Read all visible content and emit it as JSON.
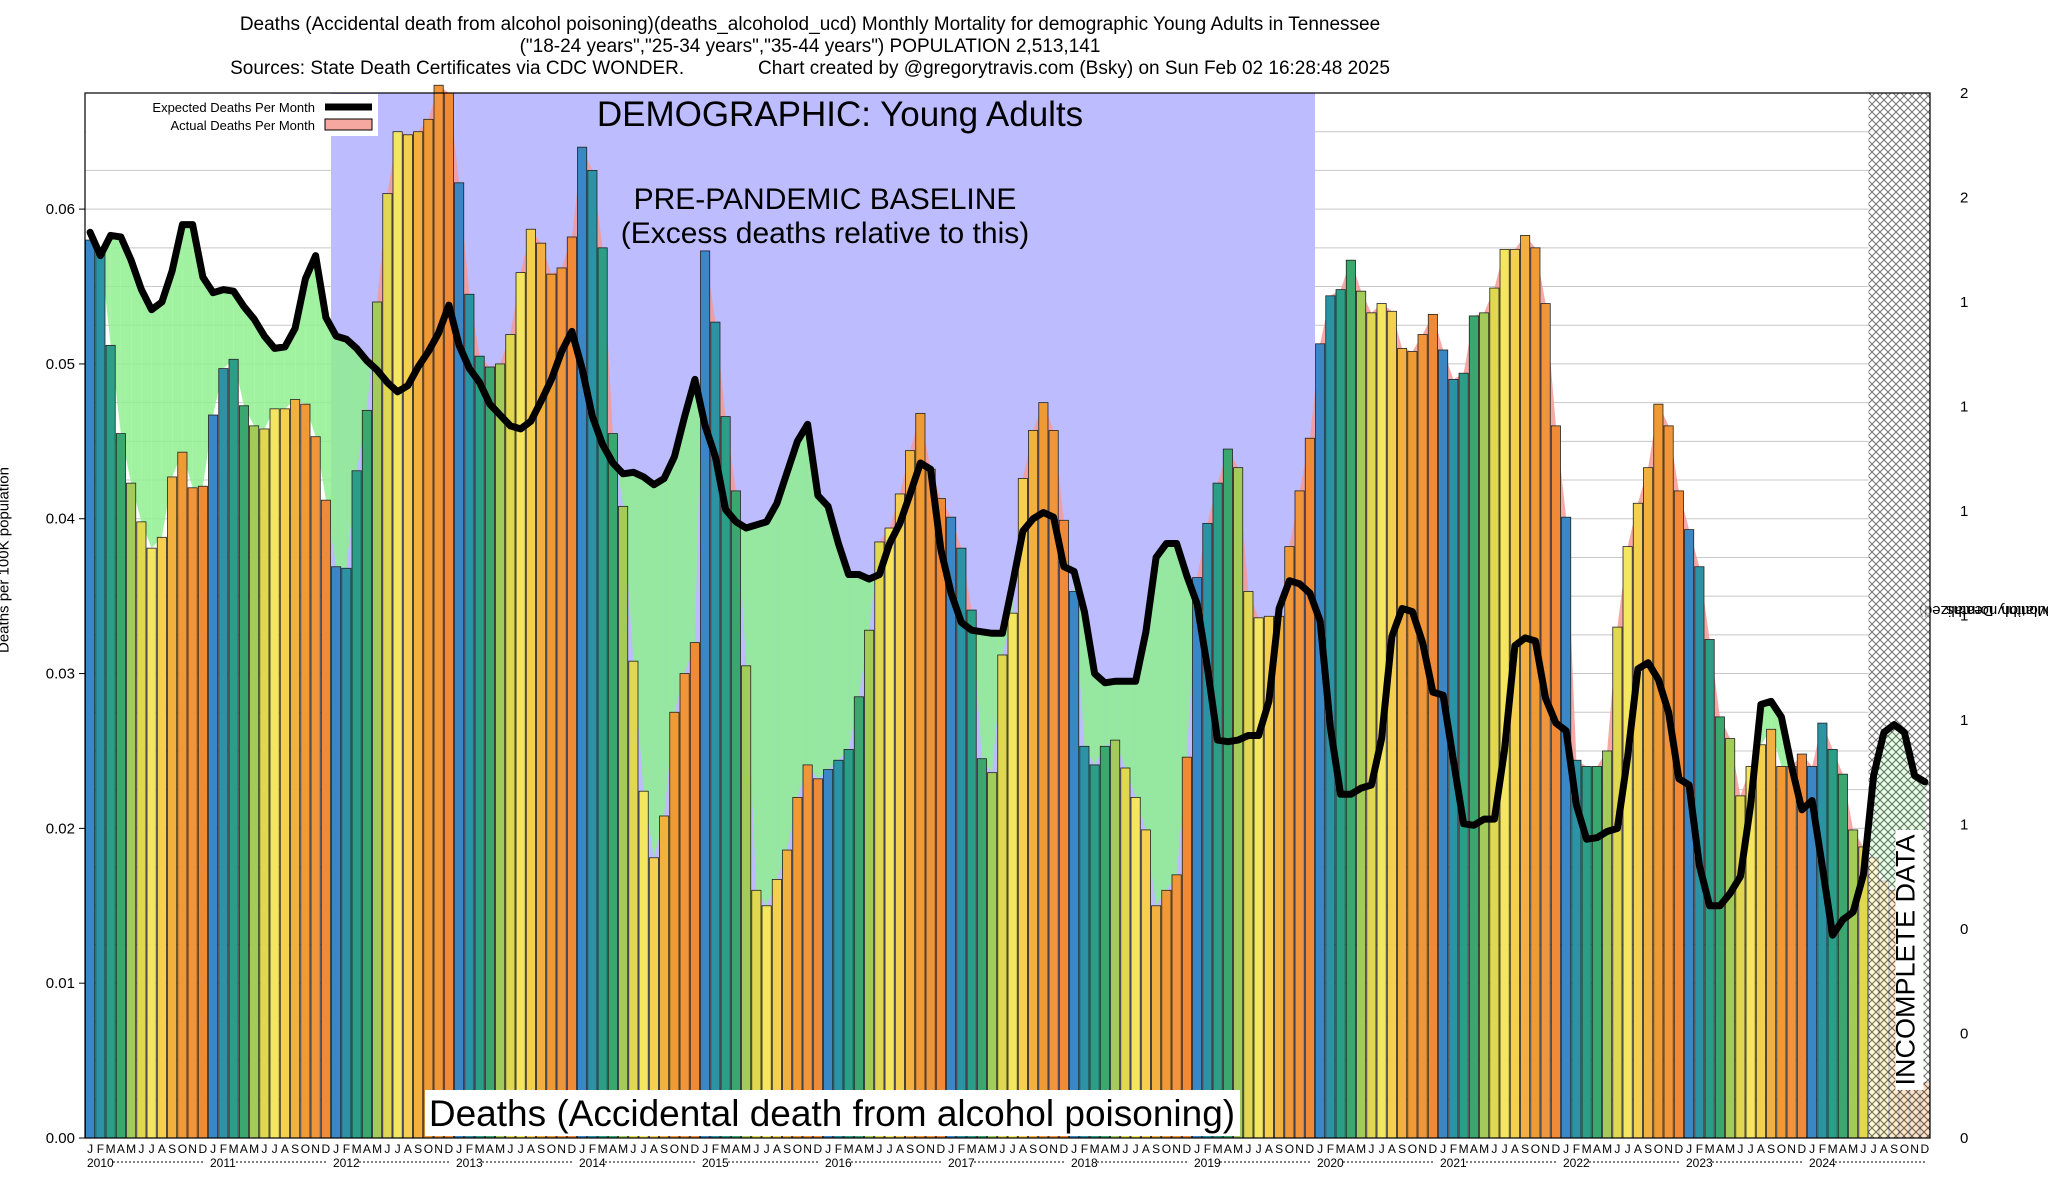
{
  "chart_data": {
    "type": "bar",
    "title": "Deaths (Accidental death from alcohol poisoning)(deaths_alcoholod_ucd) Monthly Mortality for demographic Young Adults in Tennessee",
    "subtitle": "(\"18-24 years\",\"25-34 years\",\"35-44 years\") POPULATION 2,513,141",
    "source_line": "Sources: State Death Certificates via CDC WONDER.",
    "credit_line": "Chart created by @gregorytravis.com (Bsky) on Sun Feb 02 16:28:48 2025",
    "ylabel": "Deaths per 100K population",
    "y2label_line1": "Total Monthly Deaths",
    "y2label_line2": "(2023 population normalized)",
    "ylim": [
      0,
      0.0675
    ],
    "yticks": [
      "0.00",
      "0.01",
      "0.02",
      "0.03",
      "0.04",
      "0.05",
      "0.06"
    ],
    "y2ticks": [
      "0",
      "0",
      "0",
      "1",
      "1",
      "1",
      "1",
      "1",
      "1",
      "2",
      "2"
    ],
    "grid": true,
    "legend_position": "top-left",
    "legend": [
      {
        "name": "Expected Deaths Per Month",
        "color": "#000000"
      },
      {
        "name": "Actual Deaths Per Month",
        "color": "#f4a8a0"
      }
    ],
    "annotations": {
      "demographic": "DEMOGRAPHIC: Young Adults",
      "baseline_line1": "PRE-PANDEMIC BASELINE",
      "baseline_line2": "(Excess deaths relative to this)",
      "bottom_label": "Deaths (Accidental death from alcohol poisoning)",
      "incomplete": "INCOMPLETE DATA"
    },
    "month_letters": [
      "J",
      "F",
      "M",
      "A",
      "M",
      "J",
      "J",
      "A",
      "S",
      "O",
      "N",
      "D"
    ],
    "years": [
      "2010",
      "2011",
      "2012",
      "2013",
      "2014",
      "2015",
      "2016",
      "2017",
      "2018",
      "2019",
      "2020",
      "2021",
      "2022",
      "2023",
      "2024"
    ],
    "baseline_range": [
      "2012-01",
      "2019-12"
    ],
    "incomplete_range": [
      "2024-07",
      "2024-12"
    ],
    "series": [
      {
        "name": "Actual Deaths Per Month",
        "values": [
          0.058,
          0.0575,
          0.0512,
          0.0455,
          0.0423,
          0.0398,
          0.0381,
          0.0388,
          0.0427,
          0.0443,
          0.042,
          0.0421,
          0.0467,
          0.0497,
          0.0503,
          0.0473,
          0.046,
          0.0458,
          0.0471,
          0.0471,
          0.0477,
          0.0474,
          0.0453,
          0.0412,
          0.0369,
          0.0368,
          0.0431,
          0.047,
          0.054,
          0.061,
          0.065,
          0.0648,
          0.065,
          0.0658,
          0.068,
          0.0675,
          0.0617,
          0.0545,
          0.0505,
          0.0498,
          0.05,
          0.0519,
          0.0559,
          0.0587,
          0.0578,
          0.0558,
          0.0562,
          0.0582,
          0.064,
          0.0625,
          0.0575,
          0.0455,
          0.0408,
          0.0308,
          0.0224,
          0.0181,
          0.0208,
          0.0275,
          0.03,
          0.032,
          0.0573,
          0.0527,
          0.0466,
          0.0418,
          0.0305,
          0.016,
          0.015,
          0.0167,
          0.0186,
          0.022,
          0.0241,
          0.0232,
          0.0238,
          0.0244,
          0.0251,
          0.0285,
          0.0328,
          0.0385,
          0.0394,
          0.0416,
          0.0444,
          0.0468,
          0.0432,
          0.0413,
          0.0401,
          0.0381,
          0.0341,
          0.0245,
          0.0236,
          0.0312,
          0.0339,
          0.0426,
          0.0457,
          0.0475,
          0.0457,
          0.0399,
          0.0353,
          0.0253,
          0.0241,
          0.0253,
          0.0257,
          0.0239,
          0.022,
          0.0199,
          0.015,
          0.016,
          0.017,
          0.0246,
          0.0362,
          0.0397,
          0.0423,
          0.0445,
          0.0433,
          0.0353,
          0.0336,
          0.0337,
          0.0337,
          0.0382,
          0.0418,
          0.0452,
          0.0513,
          0.0544,
          0.0548,
          0.0567,
          0.0547,
          0.0533,
          0.0539,
          0.0534,
          0.051,
          0.0508,
          0.0519,
          0.0532,
          0.0509,
          0.049,
          0.0494,
          0.0531,
          0.0533,
          0.0549,
          0.0574,
          0.0574,
          0.0583,
          0.0575,
          0.0539,
          0.046,
          0.0401,
          0.0244,
          0.024,
          0.024,
          0.025,
          0.033,
          0.0382,
          0.041,
          0.0433,
          0.0474,
          0.046,
          0.0418,
          0.0393,
          0.0369,
          0.0322,
          0.0272,
          0.0258,
          0.0221,
          0.024,
          0.0254,
          0.0264,
          0.024,
          0.024,
          0.0248,
          0.024,
          0.0268,
          0.0251,
          0.0235,
          0.0199,
          0.0188,
          0.0181,
          0.0166,
          0.016,
          0.0127,
          0.0101,
          0.0036
        ]
      },
      {
        "name": "Expected Deaths Per Month",
        "values": [
          0.0585,
          0.057,
          0.0583,
          0.0582,
          0.0567,
          0.0548,
          0.0535,
          0.054,
          0.056,
          0.059,
          0.059,
          0.0556,
          0.0546,
          0.0548,
          0.0547,
          0.0537,
          0.0529,
          0.0518,
          0.051,
          0.0511,
          0.0523,
          0.0555,
          0.057,
          0.053,
          0.0518,
          0.0516,
          0.051,
          0.0502,
          0.0496,
          0.0488,
          0.0482,
          0.0486,
          0.0498,
          0.0508,
          0.052,
          0.0538,
          0.0512,
          0.0497,
          0.0488,
          0.0474,
          0.0467,
          0.046,
          0.0458,
          0.0463,
          0.0476,
          0.049,
          0.0508,
          0.0521,
          0.0497,
          0.0466,
          0.0448,
          0.0436,
          0.0429,
          0.043,
          0.0427,
          0.0422,
          0.0426,
          0.044,
          0.0466,
          0.049,
          0.046,
          0.044,
          0.0406,
          0.0398,
          0.0394,
          0.0396,
          0.0398,
          0.041,
          0.043,
          0.045,
          0.0461,
          0.0415,
          0.0408,
          0.0384,
          0.0364,
          0.0364,
          0.0361,
          0.0364,
          0.0384,
          0.0397,
          0.0416,
          0.0436,
          0.0432,
          0.038,
          0.0352,
          0.0333,
          0.0328,
          0.0327,
          0.0326,
          0.0326,
          0.0358,
          0.0392,
          0.04,
          0.0404,
          0.0401,
          0.0369,
          0.0366,
          0.034,
          0.03,
          0.0294,
          0.0295,
          0.0295,
          0.0295,
          0.0327,
          0.0375,
          0.0384,
          0.0384,
          0.0363,
          0.0345,
          0.0304,
          0.0257,
          0.0256,
          0.0257,
          0.026,
          0.026,
          0.0282,
          0.0342,
          0.036,
          0.0358,
          0.0352,
          0.0334,
          0.0265,
          0.0222,
          0.0222,
          0.0226,
          0.0228,
          0.0258,
          0.0324,
          0.0342,
          0.034,
          0.032,
          0.0288,
          0.0286,
          0.0244,
          0.0203,
          0.0202,
          0.0206,
          0.0206,
          0.0251,
          0.0318,
          0.0323,
          0.0321,
          0.0284,
          0.0268,
          0.0263,
          0.0215,
          0.0193,
          0.0194,
          0.0198,
          0.02,
          0.0246,
          0.0303,
          0.0307,
          0.0296,
          0.0275,
          0.0232,
          0.0228,
          0.0176,
          0.015,
          0.015,
          0.0158,
          0.0169,
          0.0215,
          0.028,
          0.0282,
          0.0272,
          0.024,
          0.0212,
          0.0218,
          0.0175,
          0.0131,
          0.0141,
          0.0146,
          0.017,
          0.0234,
          0.0262,
          0.0267,
          0.0262,
          0.0234,
          0.023
        ]
      }
    ]
  }
}
